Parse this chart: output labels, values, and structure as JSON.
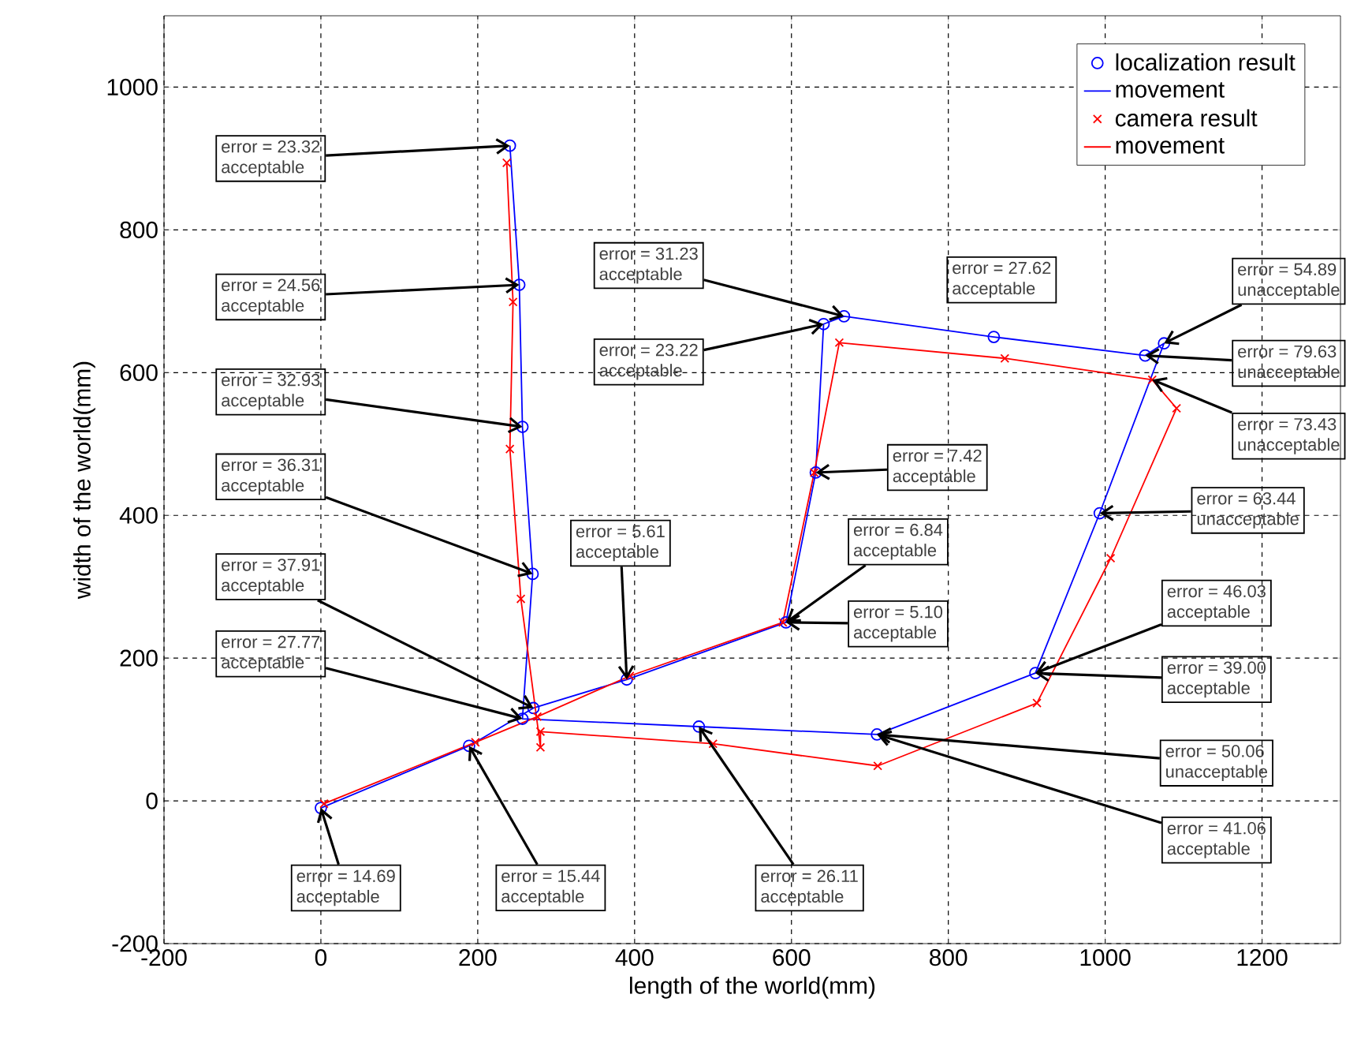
{
  "chart_data": {
    "type": "line",
    "xlabel": "length of the world(mm)",
    "ylabel": "width of the world(mm)",
    "xlim": [
      -200,
      1300
    ],
    "ylim": [
      -200,
      1100
    ],
    "xticks": [
      -200,
      0,
      200,
      400,
      600,
      800,
      1000,
      1200
    ],
    "yticks": [
      -200,
      0,
      200,
      400,
      600,
      800,
      1000
    ],
    "grid": true,
    "legend": "top right",
    "series": [
      {
        "name": "localization result",
        "type": "scatter",
        "marker": "circle",
        "color": "#0000ff",
        "x": [
          0,
          189,
          271,
          390,
          593,
          631,
          641,
          667,
          858,
          1051,
          1075,
          993,
          911,
          709,
          482,
          257,
          270,
          257,
          253,
          241
        ],
        "values": [
          -10,
          77,
          130,
          170,
          250,
          460,
          668,
          679,
          650,
          624,
          641,
          403,
          179,
          93,
          104,
          115,
          318,
          524,
          723,
          918
        ]
      },
      {
        "name": "movement",
        "type": "line",
        "color": "#0000ff",
        "x": [
          0,
          189,
          271,
          390,
          593,
          631,
          641,
          667,
          858,
          1051,
          1075,
          993,
          911,
          709,
          482,
          257,
          270,
          257,
          253,
          241
        ],
        "values": [
          -10,
          77,
          130,
          170,
          250,
          460,
          668,
          679,
          650,
          624,
          641,
          403,
          179,
          93,
          104,
          115,
          318,
          524,
          723,
          918
        ]
      },
      {
        "name": "camera result",
        "type": "scatter",
        "marker": "cross",
        "color": "#ff0000",
        "x": [
          4,
          197,
          276,
          394,
          589,
          629,
          661,
          872,
          1060,
          1091,
          1007,
          913,
          710,
          500,
          280,
          280,
          255,
          241,
          245,
          237
        ],
        "values": [
          -4,
          82,
          118,
          175,
          250,
          460,
          642,
          620,
          590,
          550,
          340,
          137,
          49,
          80,
          97,
          75,
          283,
          493,
          699,
          894
        ]
      },
      {
        "name": "movement",
        "type": "line",
        "color": "#ff0000",
        "x": [
          4,
          197,
          276,
          394,
          589,
          629,
          661,
          872,
          1060,
          1091,
          1007,
          913,
          710,
          500,
          280,
          280,
          255,
          241,
          245,
          237
        ],
        "values": [
          -4,
          82,
          118,
          175,
          250,
          460,
          642,
          620,
          590,
          550,
          340,
          137,
          49,
          80,
          97,
          75,
          283,
          493,
          699,
          894
        ]
      }
    ],
    "annotations": [
      {
        "text": "error = 23.32 acceptable",
        "x": 241,
        "y": 918
      },
      {
        "text": "error = 24.56 acceptable",
        "x": 253,
        "y": 723
      },
      {
        "text": "error = 32.93 acceptable",
        "x": 257,
        "y": 524
      },
      {
        "text": "error = 36.31 acceptable",
        "x": 270,
        "y": 318
      },
      {
        "text": "error = 37.91 acceptable",
        "x": 271,
        "y": 130
      },
      {
        "text": "error = 27.77 acceptable",
        "x": 257,
        "y": 115
      },
      {
        "text": "error = 14.69 acceptable",
        "x": 0,
        "y": -10
      },
      {
        "text": "error = 15.44 acceptable",
        "x": 189,
        "y": 77
      },
      {
        "text": "error = 26.11 acceptable",
        "x": 482,
        "y": 104
      },
      {
        "text": "error = 5.61 acceptable",
        "x": 390,
        "y": 170
      },
      {
        "text": "error = 31.23 acceptable",
        "x": 667,
        "y": 679
      },
      {
        "text": "error = 23.22 acceptable",
        "x": 641,
        "y": 668
      },
      {
        "text": "error = 27.62 acceptable",
        "x": 858,
        "y": 650
      },
      {
        "text": "error = 54.89 unacceptable",
        "x": 1075,
        "y": 641
      },
      {
        "text": "error = 79.63 unacceptable",
        "x": 1051,
        "y": 624
      },
      {
        "text": "error = 73.43 unacceptable",
        "x": 1060,
        "y": 590
      },
      {
        "text": "error = 7.42 acceptable",
        "x": 631,
        "y": 460
      },
      {
        "text": "error = 63.44 unacceptable",
        "x": 993,
        "y": 403
      },
      {
        "text": "error = 6.84 acceptable",
        "x": 593,
        "y": 250
      },
      {
        "text": "error = 5.10 acceptable",
        "x": 593,
        "y": 250
      },
      {
        "text": "error = 46.03 acceptable",
        "x": 911,
        "y": 179
      },
      {
        "text": "error = 39.00 acceptable",
        "x": 911,
        "y": 179
      },
      {
        "text": "error = 50.06 unacceptable",
        "x": 709,
        "y": 93
      },
      {
        "text": "error = 41.06 acceptable",
        "x": 709,
        "y": 93
      }
    ]
  }
}
